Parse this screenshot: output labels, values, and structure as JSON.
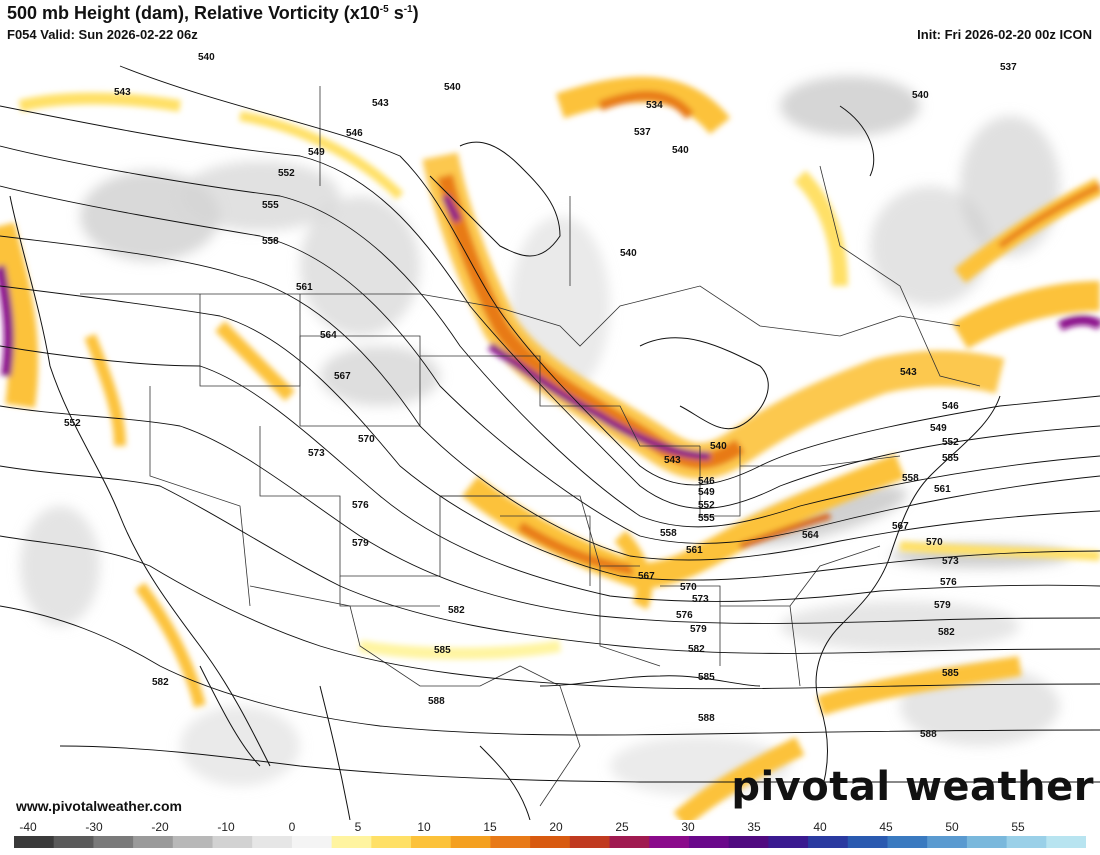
{
  "header": {
    "title": "500 mb Height (dam), Relative Vorticity (x10",
    "title_exp": "-5",
    "title_unit": " s",
    "title_unit_exp": "-1",
    "title_end": ")",
    "valid": "F054 Valid: Sun 2026-02-22 06z",
    "init": "Init: Fri 2026-02-20 00z ICON"
  },
  "footer": {
    "website": "www.pivotalweather.com",
    "brand": "pivotal weather"
  },
  "colorbar": {
    "ticks": [
      "-40",
      "-30",
      "-20",
      "-10",
      "0",
      "5",
      "10",
      "15",
      "20",
      "25",
      "30",
      "35",
      "40",
      "45",
      "50",
      "55"
    ],
    "colors": [
      "#3a3a3a",
      "#5a5a5a",
      "#7a7a7a",
      "#9a9a9a",
      "#b8b8b8",
      "#d2d2d2",
      "#e6e6e6",
      "#f4f4f4",
      "#fff4a0",
      "#ffe066",
      "#fcc23a",
      "#f4a020",
      "#e87a18",
      "#d85a10",
      "#c03a20",
      "#a01a50",
      "#8a0a8a",
      "#6a088a",
      "#500a80",
      "#3a1a90",
      "#2a3aa0",
      "#2a5ab0",
      "#3a7ac0",
      "#5a9ad0",
      "#7ab8dc",
      "#9ad0e8",
      "#b8e4f0"
    ]
  },
  "contour_labels": [
    {
      "text": "540",
      "key": "a"
    },
    {
      "text": "543",
      "key": "b"
    },
    {
      "text": "546",
      "key": "c"
    },
    {
      "text": "549",
      "key": "d"
    },
    {
      "text": "552",
      "key": "e"
    },
    {
      "text": "555",
      "key": "f"
    },
    {
      "text": "558",
      "key": "g"
    },
    {
      "text": "561",
      "key": "h"
    },
    {
      "text": "564",
      "key": "i"
    },
    {
      "text": "567",
      "key": "j"
    },
    {
      "text": "570",
      "key": "k"
    },
    {
      "text": "573",
      "key": "l"
    },
    {
      "text": "576",
      "key": "m"
    },
    {
      "text": "579",
      "key": "n"
    },
    {
      "text": "582",
      "key": "o"
    },
    {
      "text": "585",
      "key": "p"
    },
    {
      "text": "588",
      "key": "q"
    },
    {
      "text": "534",
      "key": "r"
    },
    {
      "text": "537",
      "key": "s"
    }
  ]
}
